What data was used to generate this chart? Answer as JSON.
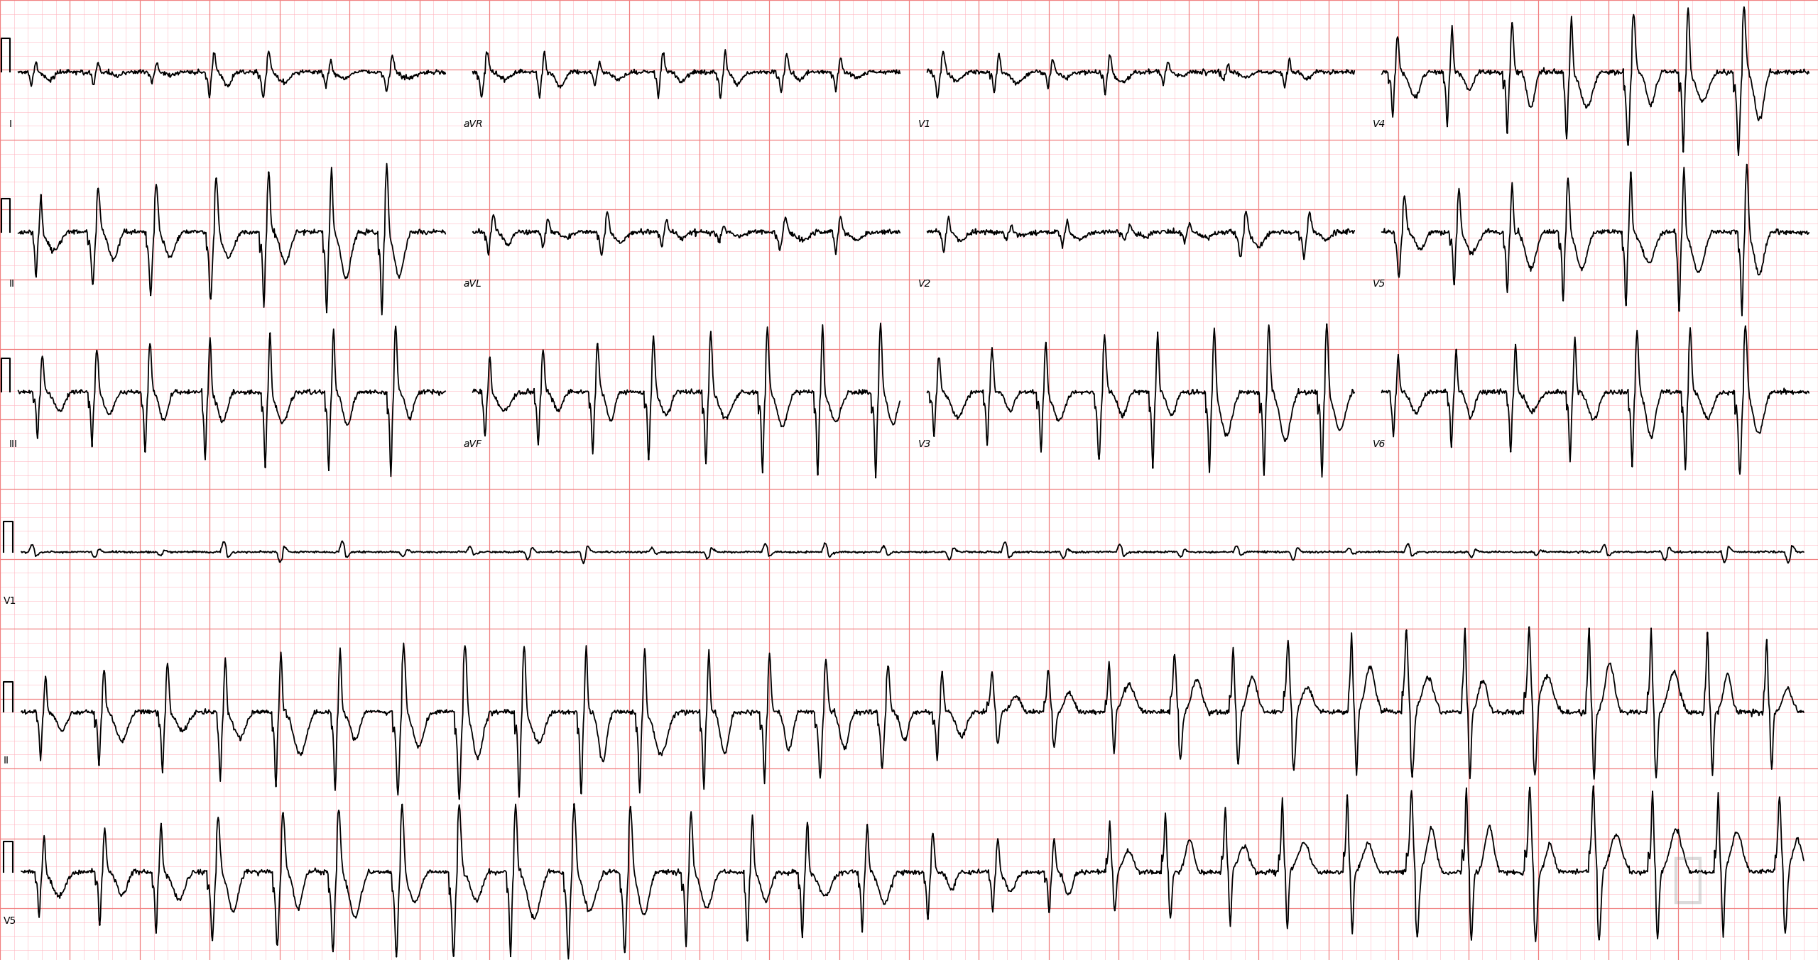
{
  "background_color": "#FFFFFF",
  "grid_major_color": "#F08080",
  "grid_minor_color": "#FFB6C1",
  "ecg_color": "#000000",
  "ecg_linewidth": 1.3,
  "fig_width": 25.6,
  "fig_height": 13.53,
  "dpi": 100,
  "watermark_color": "#999999",
  "watermark_alpha": 0.35,
  "lead_labels": [
    "I",
    "aVR",
    "V1",
    "V4",
    "II",
    "aVL",
    "V2",
    "V5",
    "III",
    "aVF",
    "V3",
    "V6"
  ],
  "rhythm_labels": [
    "V1",
    "II",
    "V5"
  ],
  "label_fontsize": 10,
  "n_rows": 6,
  "n_cols": 4
}
